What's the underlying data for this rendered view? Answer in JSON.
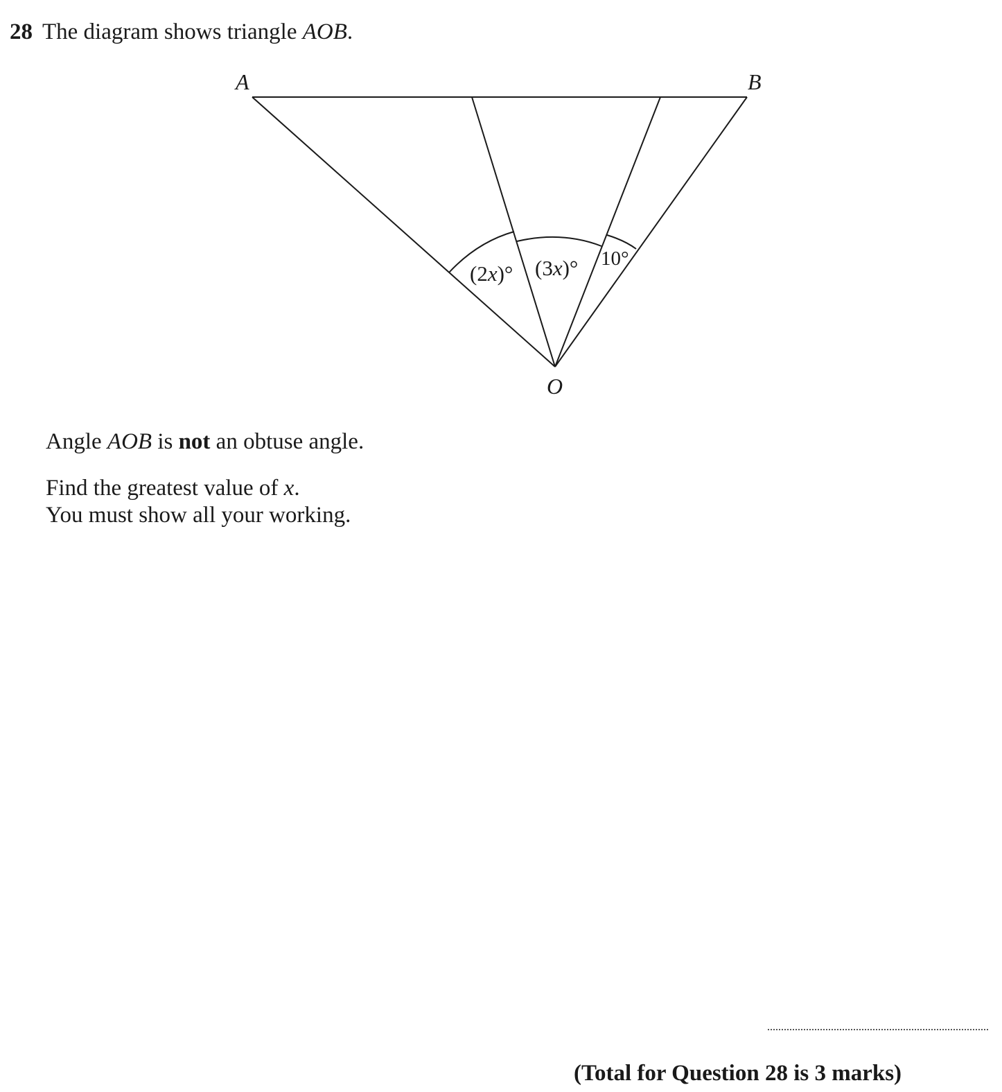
{
  "question": {
    "number": "28",
    "intro_prefix": "The diagram shows triangle ",
    "intro_italic": "AOB",
    "intro_suffix": "."
  },
  "diagram": {
    "label_a": "A",
    "label_b": "B",
    "label_o": "O",
    "angle_2x_open": "(2",
    "angle_2x_var": "x",
    "angle_2x_close": ")°",
    "angle_3x_open": "(3",
    "angle_3x_var": "x",
    "angle_3x_close": ")°",
    "angle_10": "10°"
  },
  "text": {
    "line1_prefix": "Angle ",
    "line1_italic": "AOB",
    "line1_mid": " is ",
    "line1_bold": "not",
    "line1_suffix": " an obtuse angle.",
    "line2_prefix": "Find the greatest value of ",
    "line2_italic": "x",
    "line2_suffix": ".",
    "line3": "You must show all your working."
  },
  "total": "(Total for Question 28 is 3 marks)"
}
